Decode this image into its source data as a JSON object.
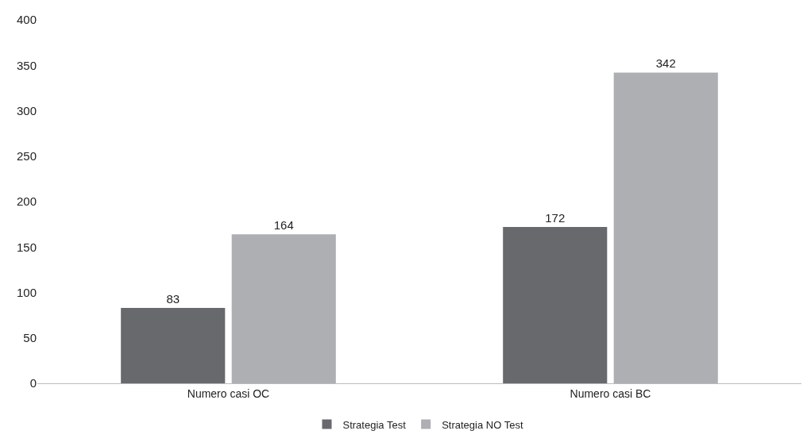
{
  "chart_data": {
    "type": "bar",
    "categories": [
      "Numero casi OC",
      "Numero casi BC"
    ],
    "series": [
      {
        "name": "Strategia Test",
        "color": "#68696d",
        "values": [
          83,
          172
        ]
      },
      {
        "name": "Strategia NO Test",
        "color": "#aeafb3",
        "values": [
          164,
          342
        ]
      }
    ],
    "ylim": [
      0,
      400
    ],
    "yticks": [
      0,
      50,
      100,
      150,
      200,
      250,
      300,
      350,
      400
    ],
    "grid": false,
    "legend": "bottom",
    "data_labels": true
  }
}
